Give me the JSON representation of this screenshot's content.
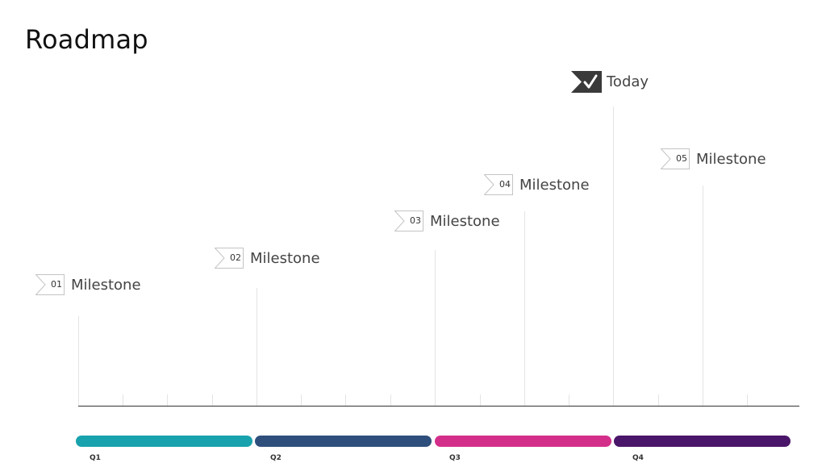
{
  "page": {
    "title": "Roadmap"
  },
  "today": {
    "label": "Today",
    "icon": "checkmark-icon",
    "color": "#3a3a3a"
  },
  "milestones": [
    {
      "num": "01",
      "label": "Milestone"
    },
    {
      "num": "02",
      "label": "Milestone"
    },
    {
      "num": "03",
      "label": "Milestone"
    },
    {
      "num": "04",
      "label": "Milestone"
    },
    {
      "num": "05",
      "label": "Milestone"
    }
  ],
  "quarters": [
    {
      "label": "Q1",
      "color": "#18a2ad"
    },
    {
      "label": "Q2",
      "color": "#2e4f7c"
    },
    {
      "label": "Q3",
      "color": "#d32f8a"
    },
    {
      "label": "Q4",
      "color": "#4a1669"
    }
  ]
}
